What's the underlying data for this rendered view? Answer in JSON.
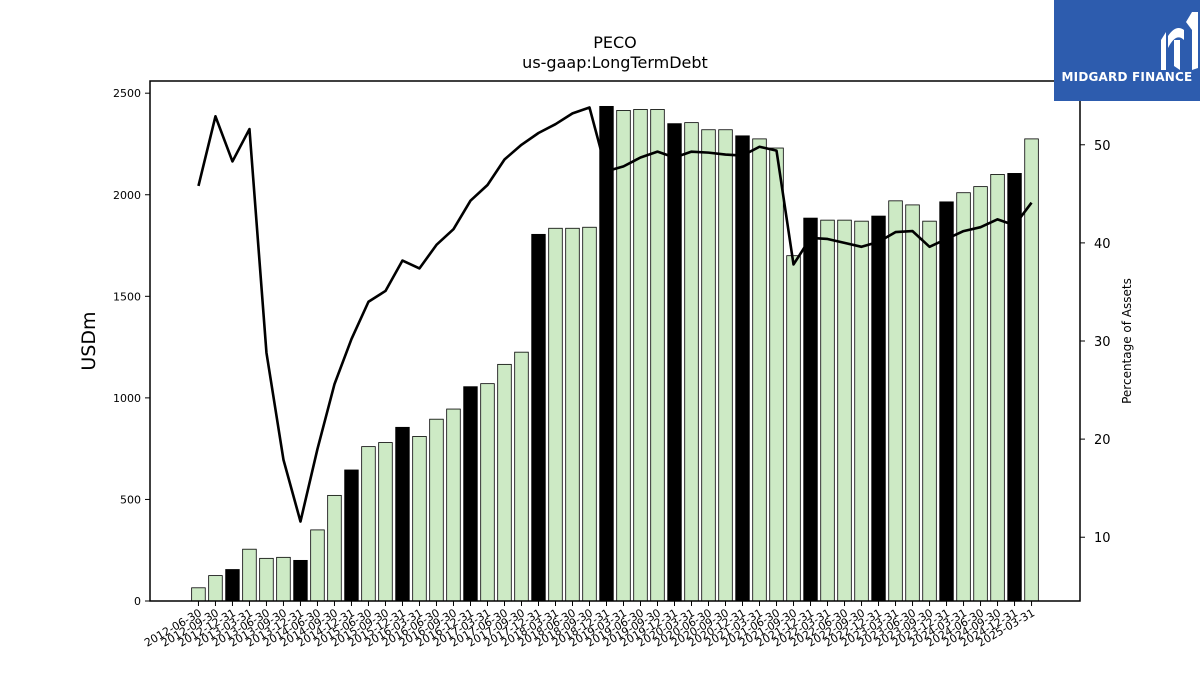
{
  "chart_data": {
    "type": "bar",
    "title": "PECO",
    "subtitle": "us-gaap:LongTermDebt",
    "ylabel": "USDm",
    "y2label": "Percentage of Assets",
    "ylim": [
      0,
      2560
    ],
    "y2lim": [
      3.5,
      56.5
    ],
    "yticks": [
      0,
      500,
      1000,
      1500,
      2000,
      2500
    ],
    "y2ticks": [
      10,
      20,
      30,
      40,
      50
    ],
    "grid": false,
    "categories": [
      "2012-06-30",
      "2012-09-30",
      "2012-12-31",
      "2013-03-31",
      "2013-06-30",
      "2013-09-30",
      "2013-12-31",
      "2014-06-30",
      "2014-09-30",
      "2014-12-31",
      "2015-06-30",
      "2015-09-30",
      "2015-12-31",
      "2016-03-31",
      "2016-06-30",
      "2016-09-30",
      "2016-12-31",
      "2017-03-31",
      "2017-06-30",
      "2017-09-30",
      "2017-12-31",
      "2018-03-31",
      "2018-06-30",
      "2018-09-30",
      "2018-12-31",
      "2019-03-31",
      "2019-06-30",
      "2019-09-30",
      "2019-12-31",
      "2020-03-31",
      "2020-06-30",
      "2020-09-30",
      "2020-12-31",
      "2021-03-31",
      "2021-06-30",
      "2021-09-30",
      "2021-12-31",
      "2022-03-31",
      "2022-06-30",
      "2022-09-30",
      "2022-12-31",
      "2023-03-31",
      "2023-06-30",
      "2023-09-30",
      "2023-12-31",
      "2024-03-31",
      "2024-06-30",
      "2024-09-30",
      "2024-12-31",
      "2025-03-31"
    ],
    "series": [
      {
        "kind": "bar",
        "axis": "left",
        "values": [
          65,
          125,
          155,
          255,
          210,
          215,
          200,
          350,
          520,
          645,
          760,
          780,
          855,
          810,
          895,
          945,
          1055,
          1070,
          1165,
          1225,
          1805,
          1835,
          1835,
          1840,
          2435,
          2415,
          2420,
          2420,
          2350,
          2355,
          2320,
          2320,
          2290,
          2275,
          2230,
          1700,
          1885,
          1875,
          1875,
          1870,
          1895,
          1970,
          1950,
          1870,
          1965,
          2010,
          2040,
          2100,
          2105,
          2275
        ],
        "highlight": [
          false,
          false,
          true,
          false,
          false,
          false,
          true,
          false,
          false,
          true,
          false,
          false,
          true,
          false,
          false,
          false,
          true,
          false,
          false,
          false,
          true,
          false,
          false,
          false,
          true,
          false,
          false,
          false,
          true,
          false,
          false,
          false,
          true,
          false,
          false,
          false,
          true,
          false,
          false,
          false,
          true,
          false,
          false,
          false,
          true,
          false,
          false,
          false,
          true,
          false
        ]
      },
      {
        "kind": "line",
        "axis": "right",
        "values": [
          45.8,
          52.9,
          48.3,
          51.6,
          28.8,
          17.9,
          11.6,
          19.0,
          25.6,
          30.2,
          34.0,
          35.1,
          38.2,
          37.4,
          39.8,
          41.4,
          44.3,
          45.9,
          48.5,
          50.0,
          51.2,
          52.1,
          53.2,
          53.8,
          47.3,
          47.8,
          48.7,
          49.3,
          48.7,
          49.3,
          49.2,
          49.0,
          48.9,
          49.8,
          49.4,
          37.8,
          40.5,
          40.4,
          40.0,
          39.6,
          40.1,
          41.1,
          41.2,
          39.6,
          40.4,
          41.2,
          41.6,
          42.4,
          41.8,
          44.1
        ]
      }
    ],
    "colors": {
      "bar": "#cdeac5",
      "bar_highlight": "#000000",
      "line": "#000000"
    }
  },
  "logo": {
    "text": "MIDGARD FINANCE",
    "bg": "#2d5cae"
  }
}
